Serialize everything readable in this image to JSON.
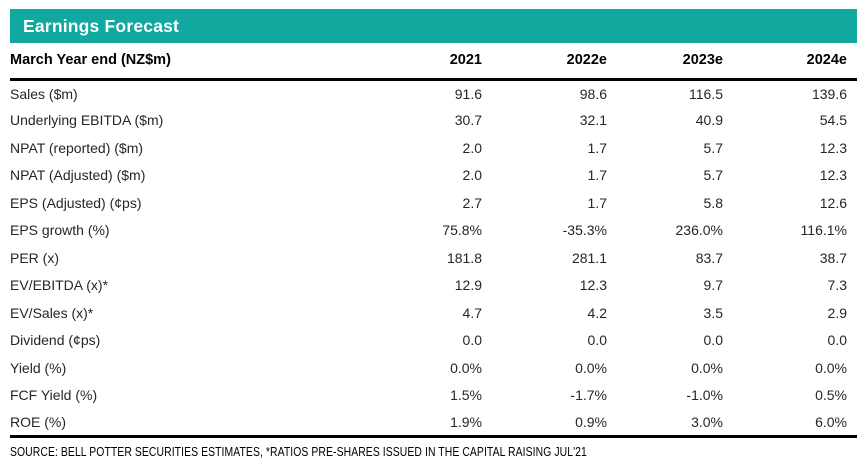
{
  "title_bar": {
    "title": "Earnings Forecast"
  },
  "chart_data": {
    "type": "table",
    "title": "Earnings Forecast",
    "columns": [
      "March Year end (NZ$m)",
      "2021",
      "2022e",
      "2023e",
      "2024e"
    ],
    "rows": [
      {
        "label": "Sales ($m)",
        "values": [
          "91.6",
          "98.6",
          "116.5",
          "139.6"
        ]
      },
      {
        "label": "Underlying EBITDA ($m)",
        "values": [
          "30.7",
          "32.1",
          "40.9",
          "54.5"
        ]
      },
      {
        "label": "NPAT (reported) ($m)",
        "values": [
          "2.0",
          "1.7",
          "5.7",
          "12.3"
        ]
      },
      {
        "label": "NPAT (Adjusted) ($m)",
        "values": [
          "2.0",
          "1.7",
          "5.7",
          "12.3"
        ]
      },
      {
        "label": "EPS (Adjusted) (¢ps)",
        "values": [
          "2.7",
          "1.7",
          "5.8",
          "12.6"
        ]
      },
      {
        "label": "EPS growth (%)",
        "values": [
          "75.8%",
          "-35.3%",
          "236.0%",
          "116.1%"
        ]
      },
      {
        "label": "PER (x)",
        "values": [
          "181.8",
          "281.1",
          "83.7",
          "38.7"
        ]
      },
      {
        "label": "EV/EBITDA (x)*",
        "values": [
          "12.9",
          "12.3",
          "9.7",
          "7.3"
        ]
      },
      {
        "label": "EV/Sales (x)*",
        "values": [
          "4.7",
          "4.2",
          "3.5",
          "2.9"
        ]
      },
      {
        "label": "Dividend (¢ps)",
        "values": [
          "0.0",
          "0.0",
          "0.0",
          "0.0"
        ]
      },
      {
        "label": "Yield (%)",
        "values": [
          "0.0%",
          "0.0%",
          "0.0%",
          "0.0%"
        ]
      },
      {
        "label": "FCF Yield (%)",
        "values": [
          "1.5%",
          "-1.7%",
          "-1.0%",
          "0.5%"
        ]
      },
      {
        "label": "ROE (%)",
        "values": [
          "1.9%",
          "0.9%",
          "3.0%",
          "6.0%"
        ]
      }
    ]
  },
  "source_note": "SOURCE: BELL POTTER SECURITIES ESTIMATES, *RATIOS PRE-SHARES ISSUED IN THE CAPITAL RAISING JUL'21",
  "colors": {
    "accent_teal": "#10a89f",
    "rule_black": "#000000",
    "title_text": "#ffffff",
    "body_text": "#262626"
  }
}
